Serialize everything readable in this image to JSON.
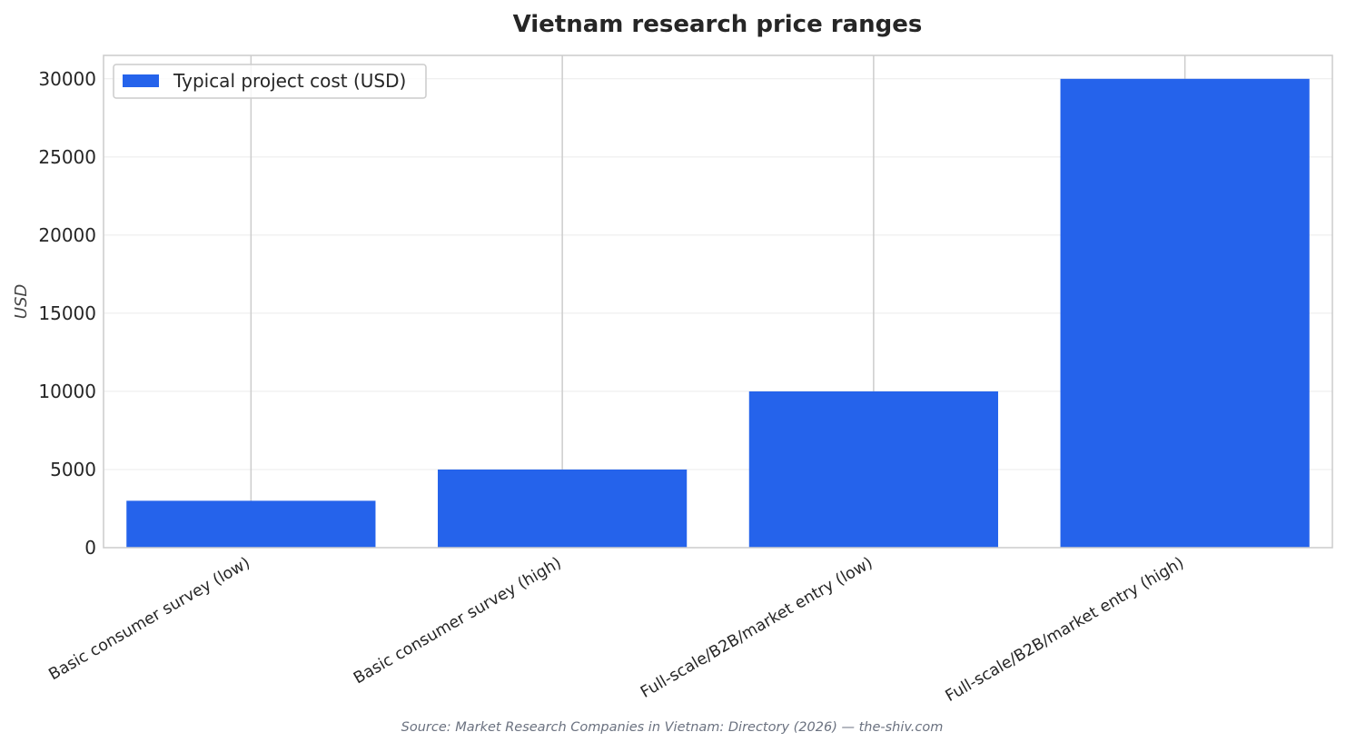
{
  "chart_data": {
    "type": "bar",
    "title": "Vietnam research price ranges",
    "xlabel": "",
    "ylabel": "USD",
    "categories": [
      "Basic consumer survey (low)",
      "Basic consumer survey (high)",
      "Full-scale/B2B/market entry (low)",
      "Full-scale/B2B/market entry (high)"
    ],
    "series": [
      {
        "name": "Typical project cost (USD)",
        "color": "#2563eb",
        "values": [
          3000,
          5000,
          10000,
          30000
        ]
      }
    ],
    "ylim": [
      0,
      31500
    ],
    "yticks": [
      0,
      5000,
      10000,
      15000,
      20000,
      25000,
      30000
    ],
    "grid": true,
    "legend_position": "top-left"
  },
  "footer": {
    "source": "Source: Market Research Companies in Vietnam: Directory (2026) — the-shiv.com"
  }
}
